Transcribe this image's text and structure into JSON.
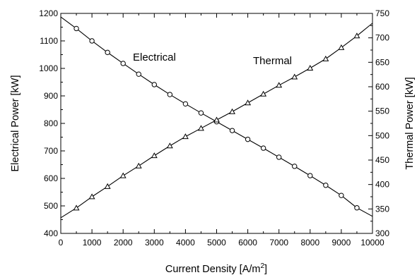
{
  "chart_data": {
    "type": "line",
    "xlabel": "Current Density  [A/m",
    "xlabel_superscript": "2",
    "xlabel_suffix": "]",
    "ylabel_left": "Electrical Power [kW]",
    "ylabel_right": "Thermal Power [kW]",
    "xlim": [
      0,
      10000
    ],
    "ylim_left": [
      400,
      1200
    ],
    "ylim_right": [
      300,
      750
    ],
    "x_ticks": [
      "0",
      "1000",
      "2000",
      "3000",
      "4000",
      "5000",
      "6000",
      "7000",
      "8000",
      "9000",
      "10000"
    ],
    "y_left_ticks": [
      "400",
      "500",
      "600",
      "700",
      "800",
      "900",
      "1000",
      "1100",
      "1200"
    ],
    "y_right_ticks": [
      "300",
      "350",
      "400",
      "450",
      "500",
      "550",
      "600",
      "650",
      "700",
      "750"
    ],
    "grid": false,
    "series": [
      {
        "name": "Electrical",
        "axis": "left",
        "marker": "circle",
        "x": [
          500,
          1000,
          1500,
          2000,
          2500,
          3000,
          3500,
          4000,
          4500,
          5000,
          5500,
          6000,
          6500,
          7000,
          7500,
          8000,
          8500,
          9000,
          9500
        ],
        "y": [
          1145,
          1100,
          1058,
          1018,
          979,
          941,
          905,
          871,
          838,
          806,
          774,
          742,
          710,
          677,
          644,
          610,
          575,
          538,
          493
        ],
        "line_start": 1187,
        "line_end": 462
      },
      {
        "name": "Thermal",
        "axis": "right",
        "marker": "triangle",
        "x": [
          500,
          1000,
          1500,
          2000,
          2500,
          3000,
          3500,
          4000,
          4500,
          5000,
          5500,
          6000,
          6500,
          7000,
          7500,
          8000,
          8500,
          9000,
          9500
        ],
        "y": [
          352,
          375,
          396,
          418,
          438,
          459,
          479,
          498,
          515,
          532,
          549,
          567,
          585,
          603,
          620,
          638,
          657,
          680,
          704
        ],
        "line_start": 332,
        "line_end": 730
      }
    ],
    "annotations": [
      "Electrical",
      "Thermal"
    ]
  }
}
